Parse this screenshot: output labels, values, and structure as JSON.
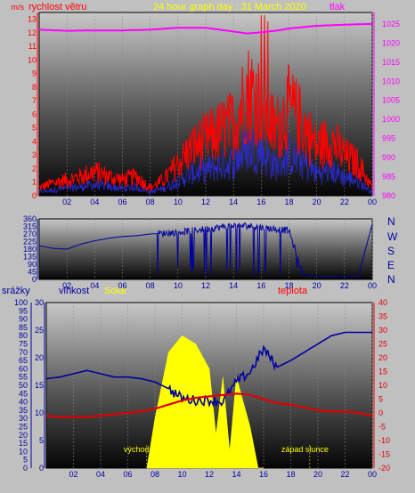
{
  "header": {
    "title": "24 hour graph day : 31 March 2020",
    "left_label": "rychlost větru",
    "left_unit": "m/s",
    "right_label": "tlak"
  },
  "compass": [
    "N",
    "W",
    "S",
    "E",
    "N"
  ],
  "lower_labels": {
    "rain": "srážky",
    "humidity": "vlhkost",
    "solar": "Solar",
    "temp": "teplota",
    "sunrise": "východ slunce",
    "sunset": "západ slunce"
  },
  "colors": {
    "wind": "#ff0000",
    "gust": "#2a2ad0",
    "pressure": "#ff00ff",
    "direction": "#0000a0",
    "humidity": "#0000a0",
    "temperature": "#e00000",
    "solar": "#ffff00",
    "rain_axis": "#0000a0",
    "humidity_axis": "#0000a0",
    "temp_axis": "#e00000",
    "title": "#ffff00"
  },
  "chart_data": [
    {
      "type": "line",
      "name": "wind-pressure",
      "x_ticks": [
        "02",
        "04",
        "06",
        "08",
        "10",
        "12",
        "14",
        "16",
        "18",
        "20",
        "22",
        "00"
      ],
      "y_left_ticks": [
        "0",
        "1",
        "2",
        "3",
        "4",
        "5",
        "6",
        "7",
        "8",
        "9",
        "10",
        "11",
        "12",
        "13"
      ],
      "y_right_ticks": [
        "980",
        "985",
        "990",
        "995",
        "1000",
        "1005",
        "1010",
        "1015",
        "1020",
        "1025"
      ],
      "ylim_left": [
        0,
        13.5
      ],
      "ylim_right": [
        980,
        1028
      ],
      "series": [
        {
          "name": "rychlost větru",
          "axis": "left",
          "x": [
            0,
            1,
            2,
            3,
            4,
            5,
            6,
            7,
            8,
            9,
            10,
            11,
            12,
            13,
            14,
            15,
            16,
            17,
            18,
            19,
            20,
            21,
            22,
            23,
            24
          ],
          "y": [
            0.5,
            0.8,
            1.0,
            1.2,
            1.5,
            1.2,
            1.0,
            1.2,
            0.5,
            1.0,
            2.0,
            3.0,
            3.5,
            4.0,
            4.5,
            6.5,
            6.0,
            4.0,
            5.5,
            4.5,
            3.0,
            3.5,
            2.5,
            2.0,
            0.5
          ]
        },
        {
          "name": "tlak",
          "axis": "right",
          "x": [
            0,
            2,
            4,
            6,
            8,
            10,
            12,
            14,
            15,
            16,
            17,
            18,
            20,
            22,
            24
          ],
          "y": [
            1023.5,
            1023.2,
            1023.3,
            1023.3,
            1023.5,
            1024.0,
            1024.0,
            1023.0,
            1022.5,
            1022.8,
            1023.2,
            1023.8,
            1024.5,
            1024.8,
            1025.0
          ]
        }
      ]
    },
    {
      "type": "line",
      "name": "wind-direction",
      "x_ticks": [
        "02",
        "04",
        "06",
        "08",
        "10",
        "12",
        "14",
        "16",
        "18",
        "20",
        "22",
        "00"
      ],
      "y_ticks": [
        "0",
        "45",
        "90",
        "135",
        "180",
        "225",
        "270",
        "315",
        "360"
      ],
      "ylim": [
        0,
        360
      ],
      "series": [
        {
          "name": "direction",
          "x": [
            0,
            1,
            2,
            3,
            4,
            5,
            6,
            7,
            8,
            9,
            10,
            11,
            12,
            13,
            14,
            15,
            16,
            17,
            18,
            19,
            20,
            21,
            22,
            23,
            24
          ],
          "y": [
            200,
            185,
            180,
            210,
            230,
            245,
            255,
            260,
            270,
            275,
            280,
            290,
            300,
            310,
            320,
            320,
            310,
            300,
            290,
            30,
            20,
            15,
            20,
            20,
            330
          ]
        }
      ]
    },
    {
      "type": "line",
      "name": "solar-temperature",
      "x_ticks": [
        "02",
        "04",
        "06",
        "08",
        "10",
        "12",
        "14",
        "16",
        "18",
        "20",
        "22",
        "00"
      ],
      "y_rain_ticks": [
        "0",
        "5",
        "10",
        "15",
        "20",
        "25",
        "30",
        "35",
        "40",
        "45",
        "50",
        "55",
        "60",
        "65",
        "70",
        "75",
        "80",
        "85",
        "90",
        "95",
        "100"
      ],
      "y_humidity_ticks": [
        "0",
        "5",
        "10",
        "15",
        "20",
        "25",
        "30"
      ],
      "y_temp_ticks": [
        "-20",
        "-15",
        "-10",
        "-5",
        "0",
        "5",
        "10",
        "15",
        "20",
        "25",
        "30",
        "35",
        "40"
      ],
      "ylim_rain": [
        0,
        100
      ],
      "ylim_humidity": [
        0,
        30
      ],
      "ylim_temp": [
        -20,
        40
      ],
      "series": [
        {
          "name": "vlhkost",
          "x": [
            0,
            1,
            2,
            3,
            4,
            5,
            6,
            7,
            8,
            9,
            10,
            11,
            12,
            13,
            14,
            15,
            16,
            17,
            18,
            19,
            20,
            21,
            22,
            23,
            24
          ],
          "y": [
            54,
            55,
            57,
            59,
            57,
            55,
            55,
            54,
            52,
            48,
            42,
            41,
            41,
            40,
            52,
            58,
            72,
            61,
            65,
            70,
            75,
            80,
            82,
            82,
            82
          ]
        },
        {
          "name": "teplota",
          "x": [
            0,
            1,
            2,
            3,
            4,
            5,
            6,
            7,
            8,
            9,
            10,
            11,
            12,
            13,
            14,
            15,
            16,
            17,
            18,
            19,
            20,
            21,
            22,
            23,
            24
          ],
          "y": [
            -1,
            -1.5,
            -1.5,
            -1.5,
            -1,
            -0.5,
            0,
            0.5,
            1.5,
            3,
            4.5,
            5.5,
            6,
            6.5,
            7,
            6.5,
            5,
            3.5,
            3,
            2,
            1,
            0.5,
            0.5,
            0,
            -1
          ]
        },
        {
          "name": "Solar",
          "x": [
            7.4,
            8,
            9,
            10,
            11,
            12,
            12.5,
            13,
            13.5,
            14,
            15,
            15.6,
            16
          ],
          "y": [
            0,
            30,
            70,
            80,
            75,
            60,
            20,
            55,
            10,
            55,
            25,
            0,
            0
          ]
        }
      ]
    }
  ]
}
